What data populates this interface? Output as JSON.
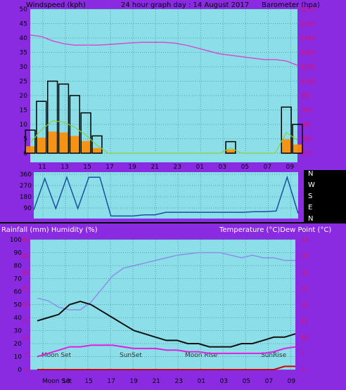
{
  "colors": {
    "frame": "#8a2be2",
    "plot_bg": "#8cdfe8",
    "wind_speed": "#000000",
    "wind_gust": "#8ed03a",
    "wind_fill": "#ff8c00",
    "barometer": "#d050d0",
    "direction": "#1a4fa0",
    "temperature": "#8890e8",
    "dewpoint": "#111111",
    "humidity": "#e020e0",
    "rain": "#cc0000"
  },
  "chart_data": [
    {
      "type": "line",
      "title": "24 hour graph day : 14 August 2017",
      "ylabel_left": "Windspeed (kph)",
      "ylabel_right": "Barometer (hpa)",
      "ylim_left": [
        0,
        50
      ],
      "ylim_right": [
        975,
        1025
      ],
      "yticks_left": [
        "0",
        "5",
        "10",
        "15",
        "20",
        "25",
        "30",
        "35",
        "40",
        "45",
        "50"
      ],
      "yticks_right": [
        "975",
        "980",
        "985",
        "990",
        "995",
        "1000",
        "1005",
        "1010",
        "1015",
        "1020",
        "1025"
      ],
      "xticks": [
        "11",
        "13",
        "15",
        "17",
        "19",
        "21",
        "23",
        "01",
        "03",
        "05",
        "07",
        "09"
      ],
      "x_hours_from_start": [
        0,
        1,
        2,
        3,
        4,
        5,
        6,
        7,
        8,
        9,
        10,
        11,
        12,
        13,
        14,
        15,
        16,
        17,
        18,
        19,
        20,
        21,
        22,
        23,
        24
      ],
      "grid": true,
      "series": [
        {
          "name": "Windspeed (kph)",
          "values": [
            8,
            18,
            25,
            24,
            20,
            14,
            6,
            0,
            0,
            0,
            0,
            0,
            0,
            0,
            0,
            0,
            0,
            0,
            4,
            0,
            0,
            0,
            0,
            16,
            10
          ]
        },
        {
          "name": "Barometer (hpa)",
          "values": [
            1016,
            1015.5,
            1014,
            1013,
            1012.5,
            1012.5,
            1012.5,
            1012.7,
            1013,
            1013.3,
            1013.5,
            1013.5,
            1013.5,
            1013.2,
            1012.5,
            1011.5,
            1010.5,
            1009.5,
            1009,
            1008.5,
            1008,
            1007.5,
            1007.5,
            1007,
            1005.5
          ]
        }
      ]
    },
    {
      "type": "line",
      "ylabel_right": [
        "N",
        "W",
        "S",
        "E",
        "N"
      ],
      "ylim": [
        0,
        360
      ],
      "yticks_left": [
        "360",
        "270",
        "180",
        "90"
      ],
      "grid": true,
      "series": [
        {
          "name": "Wind direction",
          "values": [
            70,
            320,
            80,
            330,
            80,
            330,
            330,
            20,
            20,
            20,
            30,
            30,
            50,
            50,
            50,
            50,
            50,
            50,
            50,
            50,
            55,
            55,
            60,
            330,
            40
          ]
        }
      ]
    },
    {
      "type": "line",
      "ylabel_left": "Rainfall (mm)  Humidity (%)",
      "ylabel_right": "Temperature (°C)Dew Point (°C)",
      "ylim_left": [
        0,
        100
      ],
      "ylim_rain": [
        0,
        40
      ],
      "ylim_right": [
        0,
        40
      ],
      "yticks_left": [
        "0",
        "10",
        "20",
        "30",
        "40",
        "50",
        "60",
        "70",
        "80",
        "90",
        "100"
      ],
      "yticks_rain": [
        "0",
        "5",
        "10",
        "15",
        "20",
        "25",
        "30",
        "35",
        "40"
      ],
      "yticks_right": [
        "0",
        "5",
        "10",
        "15",
        "20",
        "25",
        "30",
        "35",
        "40"
      ],
      "xticks": [
        "Moon Set",
        "13",
        "15",
        "17",
        "19",
        "21",
        "23",
        "01",
        "03",
        "05",
        "07",
        "09"
      ],
      "annotations": [
        "Moon Set",
        "SunSet",
        "Moon Rise",
        "SunRise"
      ],
      "grid": true,
      "series": [
        {
          "name": "Humidity (%)",
          "values": [
            55,
            53,
            48,
            46,
            46,
            52,
            62,
            72,
            78,
            80,
            82,
            84,
            86,
            88,
            89,
            90,
            90,
            90,
            88,
            86,
            88,
            86,
            86,
            84,
            84
          ]
        },
        {
          "name": "Temperature (°C)",
          "values": [
            15,
            16,
            17,
            20,
            21,
            20,
            18,
            16,
            14,
            12,
            11,
            10,
            9,
            9,
            8,
            8,
            7,
            7,
            7,
            8,
            8,
            9,
            10,
            10,
            11
          ]
        },
        {
          "name": "Dew Point (°C)",
          "values": [
            4,
            5,
            6,
            7,
            7,
            7.5,
            7.5,
            7.5,
            7,
            6.5,
            6.5,
            6.5,
            6,
            6,
            5.5,
            5.5,
            5,
            5,
            5,
            5,
            5,
            5,
            5.5,
            6.5,
            7
          ]
        },
        {
          "name": "Rainfall (mm)",
          "values": [
            0,
            0,
            0,
            0,
            0,
            0,
            0,
            0,
            0,
            0,
            0,
            0,
            0,
            0,
            0,
            0,
            0,
            0,
            0,
            0,
            0,
            0,
            0,
            1,
            1
          ]
        }
      ]
    }
  ],
  "compass_labels": [
    "N",
    "W",
    "S",
    "E",
    "N"
  ]
}
